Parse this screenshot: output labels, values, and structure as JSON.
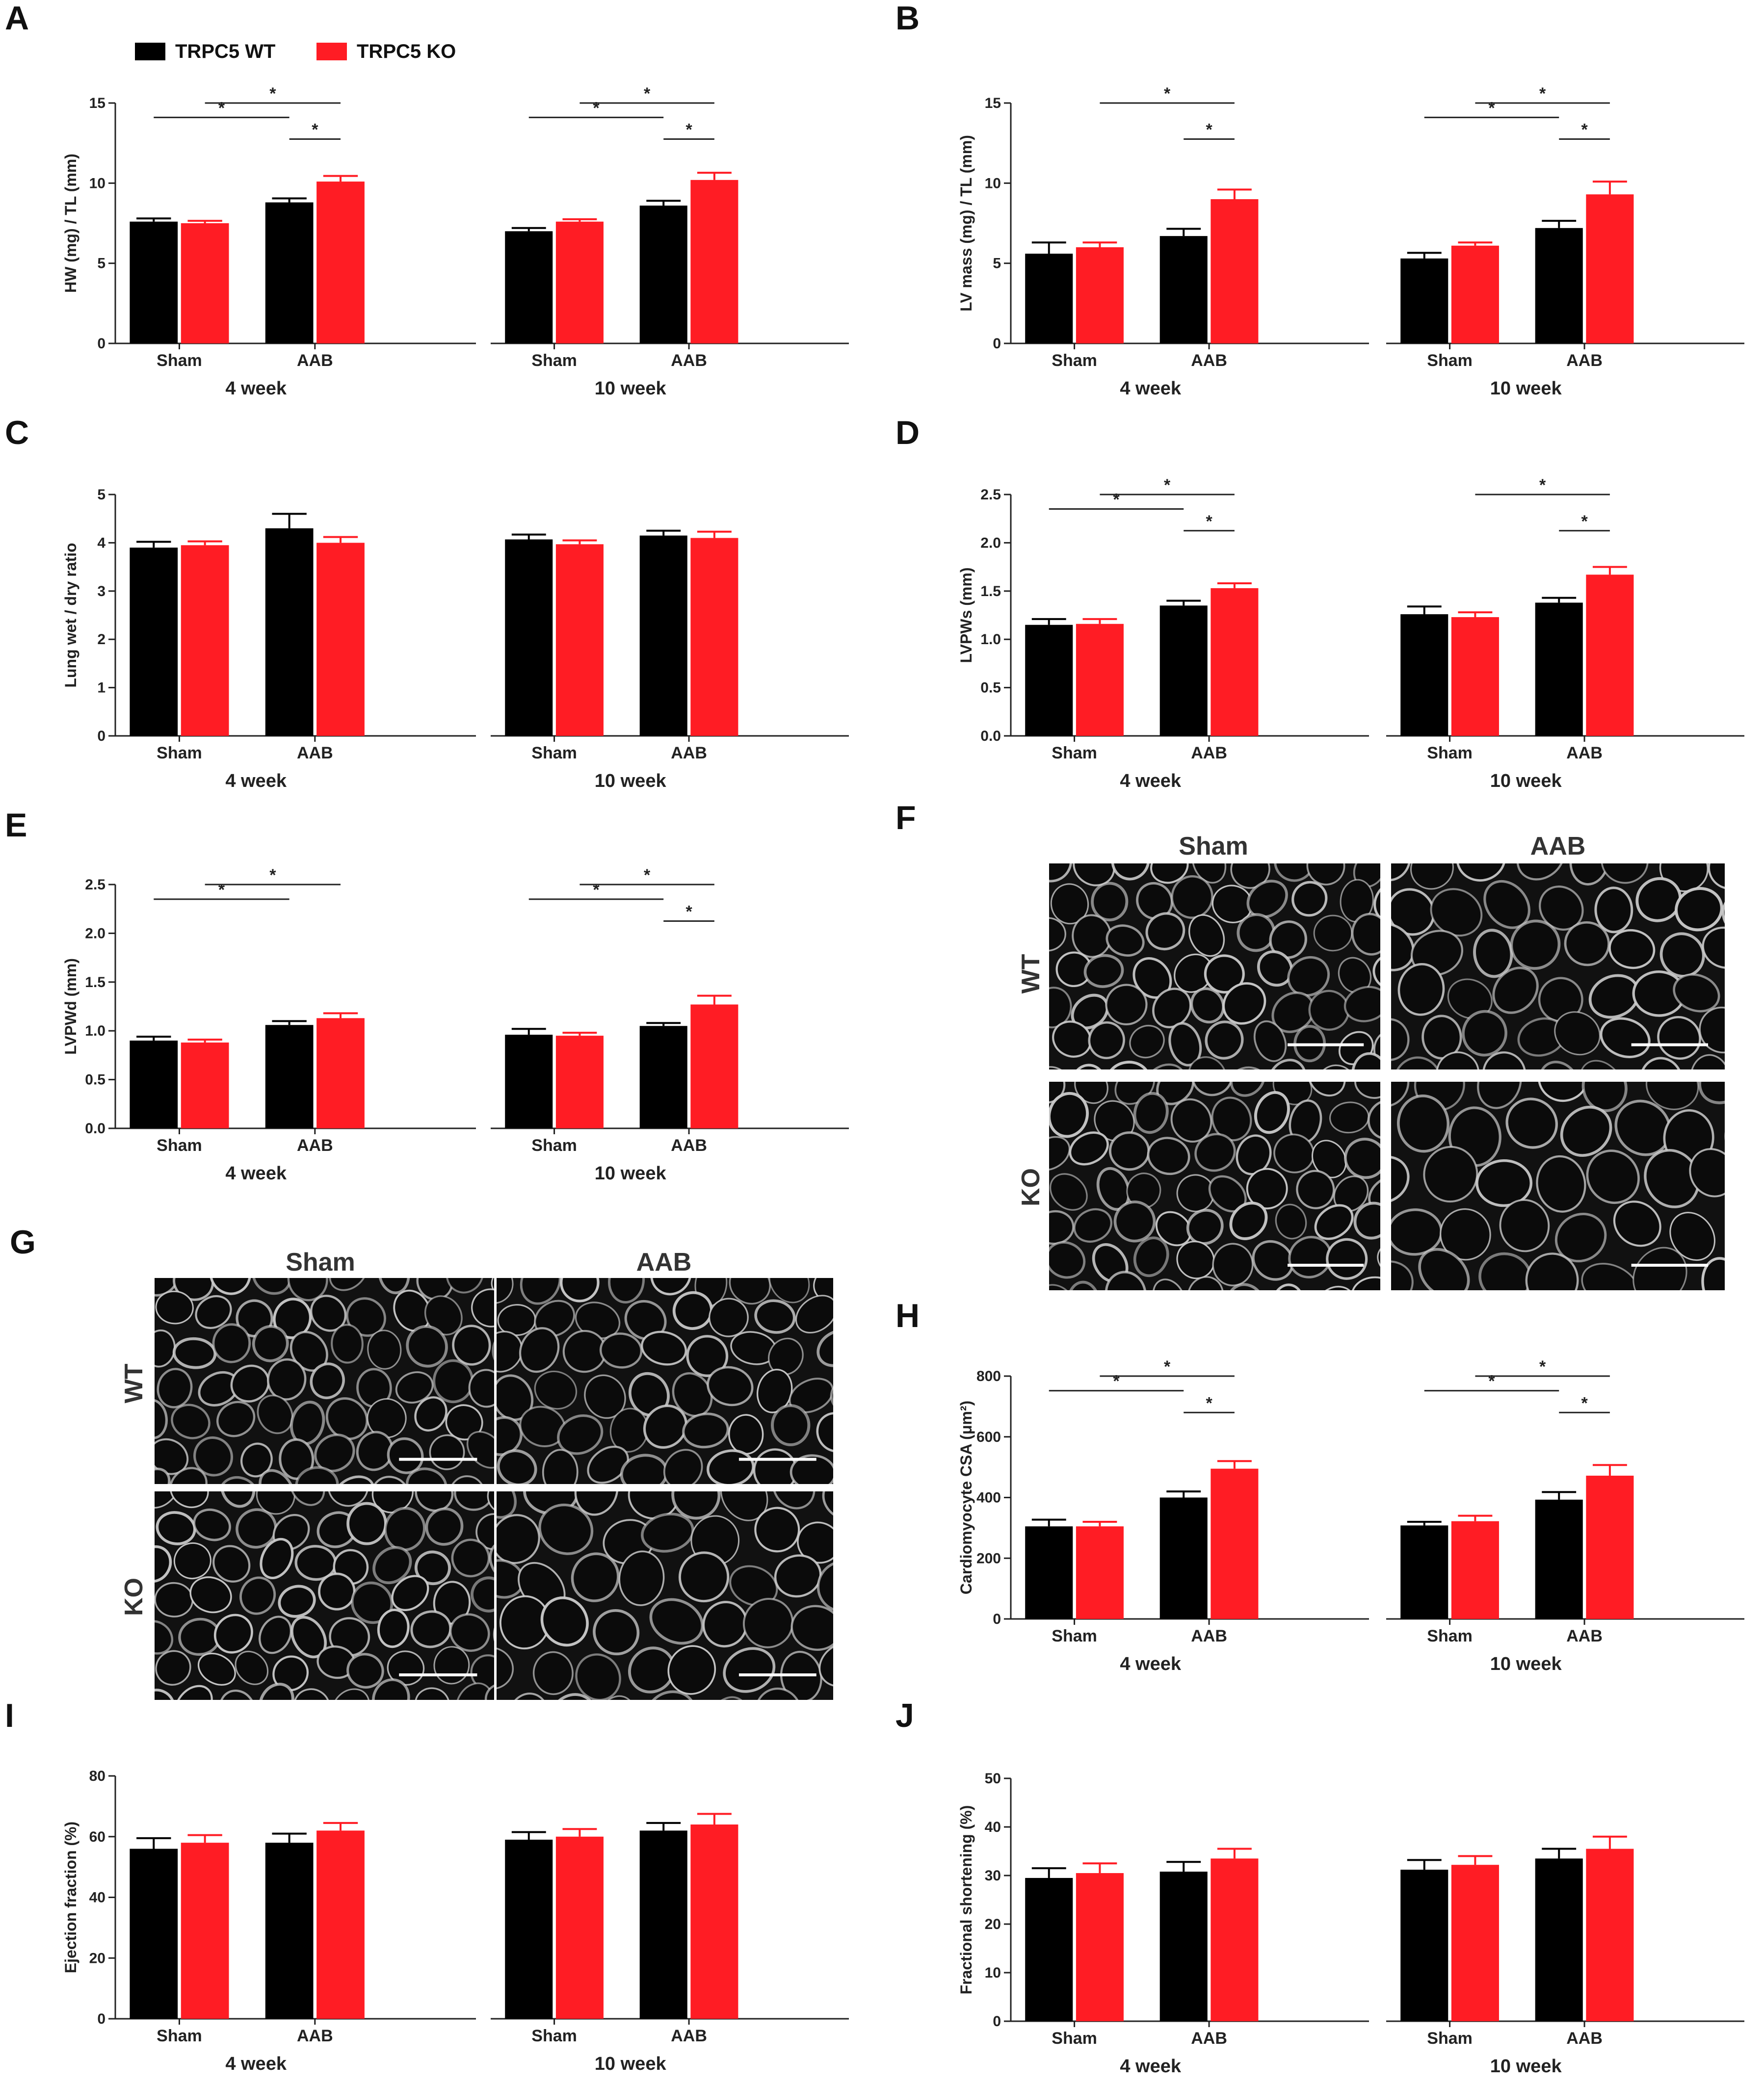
{
  "colors": {
    "wt": "#000000",
    "ko": "#ff1c24",
    "axis": "#222222"
  },
  "legend": {
    "wt_label": "TRPC5 WT",
    "ko_label": "TRPC5 KO"
  },
  "common": {
    "categories": [
      "Sham",
      "AAB"
    ],
    "groups": [
      "4 week",
      "10 week"
    ]
  },
  "micrographs": {
    "F": {
      "letter": "F",
      "col_labels": [
        "Sham",
        "AAB"
      ],
      "row_labels": [
        "WT",
        "KO"
      ]
    },
    "G": {
      "letter": "G",
      "col_labels": [
        "Sham",
        "AAB"
      ],
      "row_labels": [
        "WT",
        "KO"
      ]
    }
  },
  "chart_data": [
    {
      "letter": "A",
      "type": "bar",
      "ylabel": "HW (mg) / TL (mm)",
      "ylim": [
        0,
        15
      ],
      "ticks": [
        "0",
        "5",
        "10",
        "15"
      ],
      "categories": [
        "Sham",
        "AAB"
      ],
      "groups": [
        "4 week",
        "10 week"
      ],
      "series": [
        {
          "name": "TRPC5 WT"
        },
        {
          "name": "TRPC5 KO"
        }
      ],
      "values": [
        [
          7.6,
          7.5,
          8.8,
          10.1
        ],
        [
          7.0,
          7.6,
          8.6,
          10.2
        ]
      ],
      "errors": [
        [
          0.2,
          0.15,
          0.25,
          0.35
        ],
        [
          0.2,
          0.15,
          0.3,
          0.45
        ]
      ],
      "sig": [
        {
          "from": 0,
          "to": 2,
          "level": 1,
          "label": "*"
        },
        {
          "from": 1,
          "to": 3,
          "level": 2,
          "label": "*"
        },
        {
          "from": 2,
          "to": 3,
          "level": 0,
          "label": "*"
        }
      ]
    },
    {
      "letter": "B",
      "type": "bar",
      "ylabel": "LV mass (mg) / TL (mm)",
      "ylim": [
        0,
        15
      ],
      "ticks": [
        "0",
        "5",
        "10",
        "15"
      ],
      "categories": [
        "Sham",
        "AAB"
      ],
      "groups": [
        "4 week",
        "10 week"
      ],
      "series": [
        {
          "name": "TRPC5 WT"
        },
        {
          "name": "TRPC5 KO"
        }
      ],
      "values": [
        [
          5.6,
          6.0,
          6.7,
          9.0
        ],
        [
          5.3,
          6.1,
          7.2,
          9.3
        ]
      ],
      "errors": [
        [
          0.7,
          0.3,
          0.45,
          0.6
        ],
        [
          0.35,
          0.2,
          0.45,
          0.8
        ]
      ],
      "sig": [
        {
          "group": 0,
          "from": 1,
          "to": 3,
          "level": 2,
          "label": "*"
        },
        {
          "group": 0,
          "from": 2,
          "to": 3,
          "level": 0,
          "label": "*"
        },
        {
          "group": 1,
          "from": 0,
          "to": 2,
          "level": 1,
          "label": "*"
        },
        {
          "group": 1,
          "from": 1,
          "to": 3,
          "level": 2,
          "label": "*"
        },
        {
          "group": 1,
          "from": 2,
          "to": 3,
          "level": 0,
          "label": "*"
        }
      ]
    },
    {
      "letter": "C",
      "type": "bar",
      "ylabel": "Lung wet / dry ratio",
      "ylim": [
        0,
        5
      ],
      "ticks": [
        "0",
        "1",
        "2",
        "3",
        "4",
        "5"
      ],
      "categories": [
        "Sham",
        "AAB"
      ],
      "groups": [
        "4 week",
        "10 week"
      ],
      "series": [
        {
          "name": "TRPC5 WT"
        },
        {
          "name": "TRPC5 KO"
        }
      ],
      "values": [
        [
          3.9,
          3.95,
          4.3,
          4.0
        ],
        [
          4.07,
          3.97,
          4.15,
          4.1
        ]
      ],
      "errors": [
        [
          0.12,
          0.08,
          0.3,
          0.12
        ],
        [
          0.1,
          0.08,
          0.1,
          0.13
        ]
      ],
      "sig": []
    },
    {
      "letter": "D",
      "type": "bar",
      "ylabel": "LVPWs (mm)",
      "ylim": [
        0,
        2.5
      ],
      "ticks": [
        "0.0",
        "0.5",
        "1.0",
        "1.5",
        "2.0",
        "2.5"
      ],
      "categories": [
        "Sham",
        "AAB"
      ],
      "groups": [
        "4 week",
        "10 week"
      ],
      "series": [
        {
          "name": "TRPC5 WT"
        },
        {
          "name": "TRPC5 KO"
        }
      ],
      "values": [
        [
          1.15,
          1.16,
          1.35,
          1.53
        ],
        [
          1.26,
          1.23,
          1.38,
          1.67
        ]
      ],
      "errors": [
        [
          0.06,
          0.05,
          0.05,
          0.05
        ],
        [
          0.08,
          0.05,
          0.05,
          0.08
        ]
      ],
      "sig": [
        {
          "group": 0,
          "from": 0,
          "to": 2,
          "level": 1,
          "label": "*"
        },
        {
          "group": 0,
          "from": 1,
          "to": 3,
          "level": 2,
          "label": "*"
        },
        {
          "group": 0,
          "from": 2,
          "to": 3,
          "level": 0,
          "label": "*"
        },
        {
          "group": 1,
          "from": 1,
          "to": 3,
          "level": 2,
          "label": "*"
        },
        {
          "group": 1,
          "from": 2,
          "to": 3,
          "level": 0,
          "label": "*"
        }
      ]
    },
    {
      "letter": "E",
      "type": "bar",
      "ylabel": "LVPWd (mm)",
      "ylim": [
        0,
        2.5
      ],
      "ticks": [
        "0.0",
        "0.5",
        "1.0",
        "1.5",
        "2.0",
        "2.5"
      ],
      "categories": [
        "Sham",
        "AAB"
      ],
      "groups": [
        "4 week",
        "10 week"
      ],
      "series": [
        {
          "name": "TRPC5 WT"
        },
        {
          "name": "TRPC5 KO"
        }
      ],
      "values": [
        [
          0.9,
          0.88,
          1.06,
          1.13
        ],
        [
          0.96,
          0.95,
          1.05,
          1.27
        ]
      ],
      "errors": [
        [
          0.04,
          0.03,
          0.04,
          0.05
        ],
        [
          0.06,
          0.03,
          0.03,
          0.09
        ]
      ],
      "sig": [
        {
          "group": 0,
          "from": 0,
          "to": 2,
          "level": 1,
          "label": "*"
        },
        {
          "group": 0,
          "from": 1,
          "to": 3,
          "level": 2,
          "label": "*"
        },
        {
          "group": 1,
          "from": 0,
          "to": 2,
          "level": 1,
          "label": "*"
        },
        {
          "group": 1,
          "from": 1,
          "to": 3,
          "level": 2,
          "label": "*"
        },
        {
          "group": 1,
          "from": 2,
          "to": 3,
          "level": 0,
          "label": "*"
        }
      ]
    },
    {
      "letter": "H",
      "type": "bar",
      "ylabel": "Cardiomyocyte CSA (μm²)",
      "ylim": [
        0,
        800
      ],
      "ticks": [
        "0",
        "200",
        "400",
        "600",
        "800"
      ],
      "categories": [
        "Sham",
        "AAB"
      ],
      "groups": [
        "4 week",
        "10 week"
      ],
      "series": [
        {
          "name": "TRPC5 WT"
        },
        {
          "name": "TRPC5 KO"
        }
      ],
      "values": [
        [
          305,
          305,
          400,
          495
        ],
        [
          308,
          322,
          393,
          472
        ]
      ],
      "errors": [
        [
          22,
          15,
          20,
          25
        ],
        [
          12,
          18,
          25,
          35
        ]
      ],
      "sig": [
        {
          "from": 0,
          "to": 2,
          "level": 1,
          "label": "*"
        },
        {
          "from": 1,
          "to": 3,
          "level": 2,
          "label": "*"
        },
        {
          "from": 2,
          "to": 3,
          "level": 0,
          "label": "*"
        }
      ]
    },
    {
      "letter": "I",
      "type": "bar",
      "ylabel": "Ejection fraction (%)",
      "ylim": [
        0,
        80
      ],
      "ticks": [
        "0",
        "20",
        "40",
        "60",
        "80"
      ],
      "categories": [
        "Sham",
        "AAB"
      ],
      "groups": [
        "4 week",
        "10 week"
      ],
      "series": [
        {
          "name": "TRPC5 WT"
        },
        {
          "name": "TRPC5 KO"
        }
      ],
      "values": [
        [
          56,
          58,
          58,
          62
        ],
        [
          59,
          60,
          62,
          64
        ]
      ],
      "errors": [
        [
          3.5,
          2.5,
          3,
          2.5
        ],
        [
          2.5,
          2.5,
          2.5,
          3.5
        ]
      ],
      "sig": []
    },
    {
      "letter": "J",
      "type": "bar",
      "ylabel": "Fractional shortening (%)",
      "ylim": [
        0,
        50
      ],
      "ticks": [
        "0",
        "10",
        "20",
        "30",
        "40",
        "50"
      ],
      "categories": [
        "Sham",
        "AAB"
      ],
      "groups": [
        "4 week",
        "10 week"
      ],
      "series": [
        {
          "name": "TRPC5 WT"
        },
        {
          "name": "TRPC5 KO"
        }
      ],
      "values": [
        [
          29.5,
          30.5,
          30.8,
          33.5
        ],
        [
          31.2,
          32.2,
          33.5,
          35.5
        ]
      ],
      "errors": [
        [
          2,
          2,
          2,
          2
        ],
        [
          2,
          1.8,
          2,
          2.5
        ]
      ],
      "sig": []
    }
  ]
}
